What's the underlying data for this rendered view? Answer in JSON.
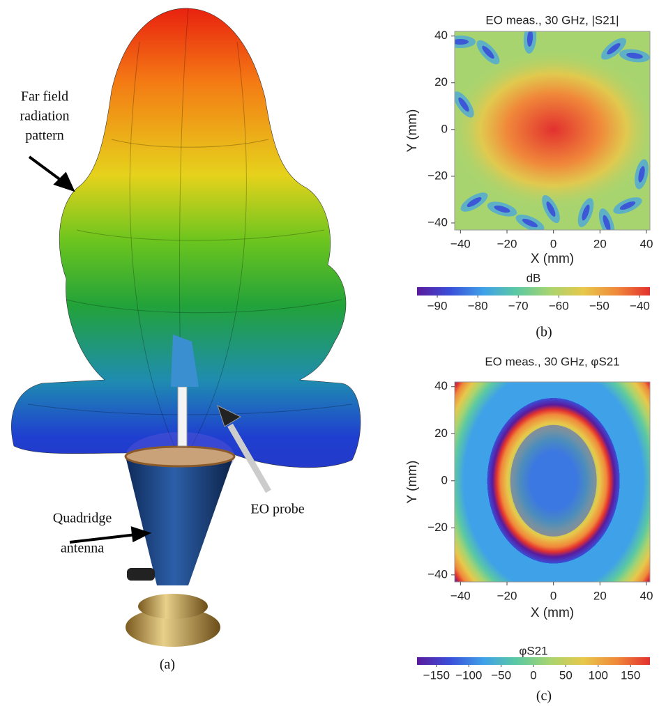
{
  "figure": {
    "panel_label": "(a)",
    "annotations": [
      "Far field",
      "radiation",
      "pattern",
      "EO probe",
      "Quadridge",
      "antenna"
    ]
  },
  "chart_data": [
    {
      "type": "heatmap",
      "title": "EO meas., 30 GHz, |S21|",
      "panel_label": "(b)",
      "xlabel": "X (mm)",
      "ylabel": "Y (mm)",
      "xlim": [
        -42.5,
        41.5
      ],
      "ylim": [
        -43,
        42
      ],
      "xticks": [
        {
          "value": -40,
          "label": "−40"
        },
        {
          "value": -20,
          "label": "−20"
        },
        0,
        20,
        40
      ],
      "yticks": [
        {
          "value": -40,
          "label": "−40"
        },
        {
          "value": -20,
          "label": "−20"
        },
        0,
        20,
        40
      ],
      "colorbar": {
        "label": "dB",
        "lim": [
          -95,
          -37.5
        ],
        "ticks": [
          {
            "value": -90,
            "label": "−90"
          },
          {
            "value": -80,
            "label": "−80"
          },
          {
            "value": -70,
            "label": "−70"
          },
          {
            "value": -60,
            "label": "−60"
          },
          {
            "value": -50,
            "label": "−50"
          },
          {
            "value": -40,
            "label": "−40"
          }
        ]
      },
      "colormap": [
        "#5b1a9c",
        "#3a4fd9",
        "#3fa1e8",
        "#5cc9a2",
        "#a8d46f",
        "#e7c84b",
        "#f0893a",
        "#e2312f"
      ]
    },
    {
      "type": "heatmap",
      "title": "EO meas., 30 GHz, φS21",
      "panel_label": "(c)",
      "xlabel": "X (mm)",
      "ylabel": "Y (mm)",
      "xlim": [
        -42.5,
        41.5
      ],
      "ylim": [
        -43,
        42
      ],
      "xticks": [
        {
          "value": -40,
          "label": "−40"
        },
        {
          "value": -20,
          "label": "−20"
        },
        0,
        20,
        40
      ],
      "yticks": [
        {
          "value": -40,
          "label": "−40"
        },
        {
          "value": -20,
          "label": "−20"
        },
        0,
        20,
        40
      ],
      "colorbar": {
        "label": "φS21",
        "lim": [
          -180,
          180
        ],
        "ticks": [
          {
            "value": -150,
            "label": "−150"
          },
          {
            "value": -100,
            "label": "−100"
          },
          {
            "value": -50,
            "label": "−50"
          },
          0,
          50,
          100,
          150
        ]
      },
      "colormap": [
        "#5b1a9c",
        "#3a4fd9",
        "#3fa1e8",
        "#5cc9a2",
        "#a8d46f",
        "#e7c84b",
        "#f0893a",
        "#e2312f"
      ]
    }
  ]
}
